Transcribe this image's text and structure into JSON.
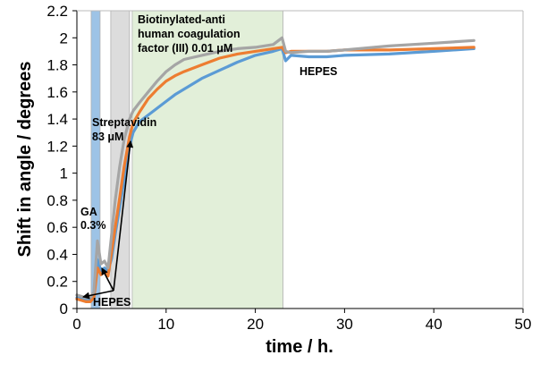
{
  "chart_data": {
    "type": "line",
    "title": "",
    "xlabel": "time / h.",
    "ylabel": "Shift in angle / degrees",
    "xlim": [
      0,
      50
    ],
    "ylim": [
      0,
      2.2
    ],
    "x_ticks": [
      0,
      10,
      20,
      30,
      40,
      50
    ],
    "y_ticks": [
      0,
      0.2,
      0.4,
      0.6,
      0.8,
      1,
      1.2,
      1.4,
      1.6,
      1.8,
      2,
      2.2
    ],
    "grid": false,
    "legend": "none",
    "shaded_regions": [
      {
        "x": [
          1.6,
          2.6
        ],
        "color": "#9dc3e6"
      },
      {
        "x": [
          3.8,
          5.9
        ],
        "color": "#dcdcdc"
      },
      {
        "x": [
          6.2,
          23.1
        ],
        "color": "#e2efd9"
      }
    ],
    "series": [
      {
        "color": "#5b9bd5",
        "x": [
          0,
          0.5,
          1,
          1.5,
          1.9,
          2.3,
          2.7,
          3.1,
          3.5,
          3.9,
          4.3,
          4.8,
          5.3,
          5.9,
          6.3,
          7,
          8,
          9,
          10,
          11,
          12,
          14,
          16,
          18,
          20,
          22,
          23,
          23.4,
          24,
          26,
          28,
          30,
          35,
          40,
          44.5
        ],
        "y": [
          0.08,
          0.07,
          0.06,
          0.06,
          0.08,
          0.36,
          0.28,
          0.3,
          0.28,
          0.37,
          0.55,
          0.75,
          0.95,
          1.2,
          1.3,
          1.38,
          1.43,
          1.48,
          1.53,
          1.58,
          1.62,
          1.7,
          1.76,
          1.82,
          1.87,
          1.9,
          1.92,
          1.83,
          1.87,
          1.86,
          1.86,
          1.87,
          1.88,
          1.9,
          1.92
        ]
      },
      {
        "color": "#ed7d31",
        "x": [
          0,
          0.5,
          1,
          1.5,
          1.9,
          2.3,
          2.7,
          3.1,
          3.5,
          3.9,
          4.3,
          4.8,
          5.3,
          5.9,
          6.3,
          7,
          8,
          9,
          10,
          11,
          12,
          14,
          16,
          18,
          20,
          22,
          23,
          23.4,
          24,
          26,
          28,
          30,
          35,
          40,
          44.5
        ],
        "y": [
          0.07,
          0.06,
          0.05,
          0.05,
          0.08,
          0.3,
          0.25,
          0.27,
          0.24,
          0.42,
          0.6,
          0.82,
          1.05,
          1.27,
          1.37,
          1.45,
          1.55,
          1.62,
          1.68,
          1.72,
          1.75,
          1.8,
          1.85,
          1.88,
          1.9,
          1.92,
          1.93,
          1.89,
          1.9,
          1.9,
          1.9,
          1.91,
          1.91,
          1.92,
          1.93
        ]
      },
      {
        "color": "#a5a5a5",
        "x": [
          0,
          0.5,
          1,
          1.5,
          1.9,
          2.3,
          2.7,
          3.1,
          3.5,
          3.9,
          4.3,
          4.8,
          5.3,
          5.9,
          6.3,
          7,
          8,
          9,
          10,
          11,
          12,
          14,
          16,
          18,
          20,
          22,
          23,
          23.4,
          24,
          26,
          28,
          30,
          35,
          40,
          44.5
        ],
        "y": [
          0.1,
          0.09,
          0.08,
          0.08,
          0.12,
          0.5,
          0.33,
          0.35,
          0.3,
          0.55,
          0.8,
          1.05,
          1.25,
          1.4,
          1.46,
          1.52,
          1.6,
          1.68,
          1.75,
          1.8,
          1.84,
          1.87,
          1.9,
          1.92,
          1.93,
          1.95,
          2.0,
          1.9,
          1.89,
          1.9,
          1.9,
          1.91,
          1.94,
          1.96,
          1.98
        ]
      }
    ],
    "annotations": [
      {
        "id": "ga",
        "lines": [
          "GA",
          "0.3%"
        ]
      },
      {
        "id": "hepes1",
        "lines": [
          "HEPES"
        ]
      },
      {
        "id": "strep",
        "lines": [
          "Streptavidin",
          "83 μM"
        ]
      },
      {
        "id": "biotin",
        "lines": [
          "Biotinylated-anti",
          "human coagulation",
          "factor (III) 0.01  μM"
        ]
      },
      {
        "id": "hepes2",
        "lines": [
          "HEPES"
        ]
      }
    ]
  }
}
